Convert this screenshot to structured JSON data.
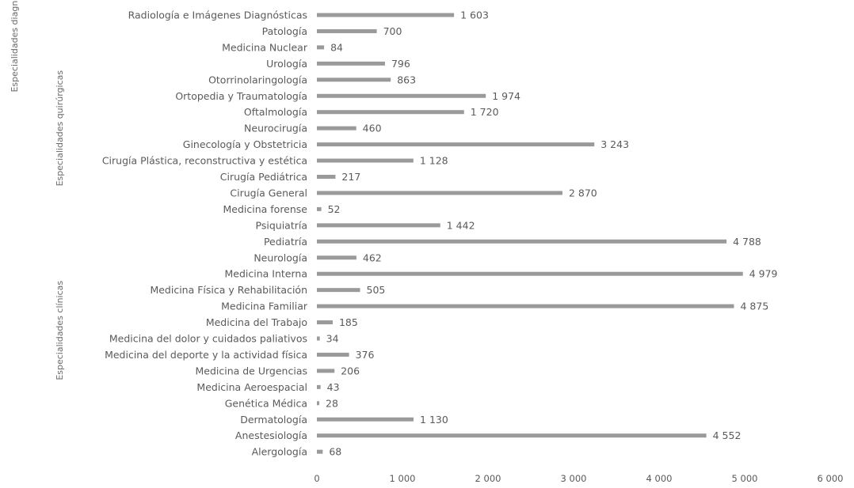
{
  "chart_data": {
    "type": "bar",
    "orientation": "horizontal",
    "categories": [
      "Radiología e Imágenes Diagnósticas",
      "Patología",
      "Medicina Nuclear",
      "Urología",
      "Otorrinolaringología",
      "Ortopedia y Traumatología",
      "Oftalmología",
      "Neurocirugía",
      "Ginecología y Obstetricia",
      "Cirugía Plástica, reconstructiva y estética",
      "Cirugía Pediátrica",
      "Cirugía General",
      "Medicina forense",
      "Psiquiatría",
      "Pediatría",
      "Neurología",
      "Medicina Interna",
      "Medicina Física y Rehabilitación",
      "Medicina Familiar",
      "Medicina del Trabajo",
      "Medicina del dolor y cuidados paliativos",
      "Medicina del deporte y la actividad física",
      "Medicina de Urgencias",
      "Medicina Aeroespacial",
      "Genética Médica",
      "Dermatología",
      "Anestesiología",
      "Alergología"
    ],
    "values": [
      1603,
      700,
      84,
      796,
      863,
      1974,
      1720,
      460,
      3243,
      1128,
      217,
      2870,
      52,
      1442,
      4788,
      462,
      4979,
      505,
      4875,
      185,
      34,
      376,
      206,
      43,
      28,
      1130,
      4552,
      68
    ],
    "value_labels": [
      "1 603",
      "700",
      "84",
      "796",
      "863",
      "1 974",
      "1 720",
      "460",
      "3 243",
      "1 128",
      "217",
      "2 870",
      "52",
      "1 442",
      "4 788",
      "462",
      "4 979",
      "505",
      "4 875",
      "185",
      "34",
      "376",
      "206",
      "43",
      "28",
      "1 130",
      "4 552",
      "68"
    ],
    "groups": [
      {
        "label": "Especialidades diagnósticas",
        "count": 3
      },
      {
        "label": "Especialidades quirúrgicas",
        "count": 9
      },
      {
        "label": "Especialidades clínicas",
        "count": 16
      }
    ],
    "xlim": [
      0,
      6000
    ],
    "xticks": [
      0,
      1000,
      2000,
      3000,
      4000,
      5000,
      6000
    ],
    "xtick_labels": [
      "0",
      "1 000",
      "2 000",
      "3 000",
      "4 000",
      "5 000",
      "6 000"
    ],
    "title": "",
    "xlabel": "",
    "ylabel": "",
    "grid": false,
    "bar_color": "#9a9a9a"
  }
}
